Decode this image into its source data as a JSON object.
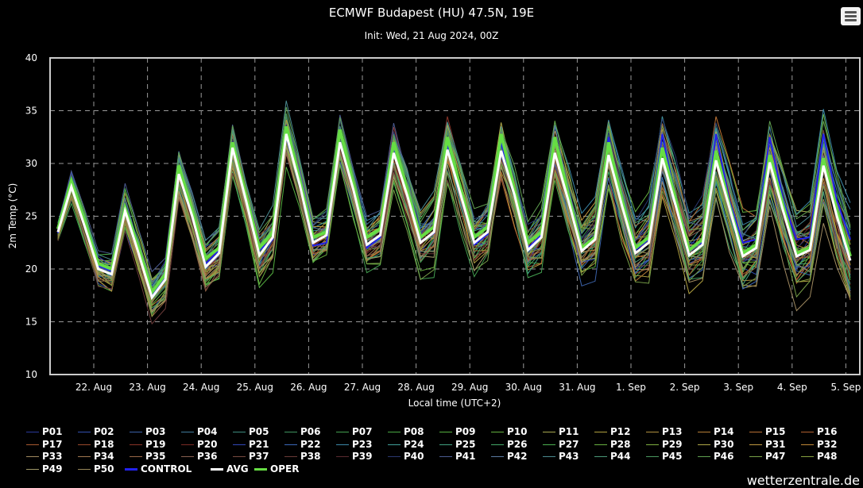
{
  "header": {
    "title": "ECMWF Budapest (HU) 47.5N, 19E",
    "subtitle": "Init: Wed, 21 Aug 2024, 00Z",
    "menu_icon": "hamburger-menu-icon"
  },
  "footer": {
    "brand": "wetterzentrale.de"
  },
  "chart_data": {
    "type": "line",
    "title": "ECMWF Budapest (HU) 47.5N, 19E",
    "subtitle": "Init: Wed, 21 Aug 2024, 00Z",
    "xlabel": "Local time (UTC+2)",
    "ylabel": "2m Temp (°C)",
    "ylim": [
      10,
      40
    ],
    "yticks": [
      "10",
      "15",
      "20",
      "25",
      "30",
      "35",
      "40"
    ],
    "xticks": [
      "22. Aug",
      "23. Aug",
      "24. Aug",
      "25. Aug",
      "26. Aug",
      "27. Aug",
      "28. Aug",
      "29. Aug",
      "30. Aug",
      "31. Aug",
      "1. Sep",
      "2. Sep",
      "3. Sep",
      "4. Sep",
      "5. Sep"
    ],
    "x_start": "21 Aug 08:00 local",
    "x_step_hours": 6,
    "grid": true,
    "legend_position": "bottom",
    "series_avg": {
      "name": "AVG",
      "color": "#ffffff",
      "values": [
        23.5,
        27.8,
        24,
        20,
        19.5,
        25.5,
        21.5,
        17.3,
        19,
        29,
        25,
        20.2,
        21.5,
        31.5,
        26.5,
        21.3,
        23,
        32.8,
        28,
        22.5,
        23.2,
        32,
        27.5,
        22.3,
        23.2,
        31,
        27,
        22.5,
        23.5,
        31.3,
        27,
        22.5,
        23.5,
        31.2,
        27,
        21.8,
        23,
        31,
        26.5,
        21.7,
        22.8,
        30.8,
        26,
        21.5,
        22.5,
        30.5,
        26,
        21.3,
        22.3,
        30.3,
        25.8,
        21.2,
        22,
        30.1,
        25.5,
        21.2,
        21.8,
        29.8,
        25,
        20.8
      ]
    },
    "series_oper": {
      "name": "OPER",
      "color": "#66dd44",
      "values": [
        23.8,
        28.3,
        24.5,
        20.5,
        20,
        25.8,
        22,
        17.8,
        19.5,
        29.8,
        25.5,
        21,
        22,
        32,
        27,
        22,
        23.5,
        33.5,
        28.5,
        23,
        23.5,
        33.2,
        28,
        23,
        23.8,
        32,
        27.5,
        23,
        24,
        32.5,
        27.5,
        23,
        24,
        32.8,
        27.5,
        22.5,
        23.5,
        32.5,
        27,
        22,
        23,
        32,
        26.5,
        22,
        23,
        31.5,
        26.5,
        21.8,
        22.8,
        31.2,
        26,
        21.5,
        22.3,
        30.8,
        26,
        21.5,
        22,
        30.5,
        25.5,
        21.2
      ]
    },
    "series_control": {
      "name": "CONTROL",
      "color": "#2222ee",
      "values": [
        23.4,
        28.5,
        24.3,
        20.3,
        19.8,
        26,
        21.8,
        17.5,
        19.2,
        29.5,
        25.2,
        20.5,
        21.8,
        31.8,
        26.8,
        21.8,
        22.8,
        33,
        28,
        22.2,
        22.5,
        32.8,
        27.8,
        22,
        23,
        31.5,
        27,
        22.5,
        23.4,
        31.8,
        27,
        22.3,
        23.3,
        32,
        27,
        22,
        23.2,
        32.3,
        26.8,
        22,
        23,
        32.5,
        26.5,
        21.8,
        22.8,
        32.8,
        26.5,
        22,
        22.5,
        32.8,
        26.5,
        22.5,
        22.8,
        32.5,
        26.5,
        22.8,
        23,
        32.8,
        26.5,
        22.8
      ]
    },
    "ensemble_spread": [
      0.8,
      1,
      1,
      1,
      1.1,
      1.1,
      1.2,
      1.2,
      1.3,
      1.3,
      1.3,
      1.3,
      1.4,
      1.3,
      1.3,
      1.4,
      1.4,
      1.2,
      1.4,
      1.4,
      1.5,
      1.4,
      1.6,
      1.6,
      1.7,
      1.6,
      1.8,
      1.8,
      1.9,
      1.7,
      1.9,
      1.9,
      2,
      1.7,
      1.9,
      1.8,
      2,
      1.7,
      1.9,
      1.9,
      2,
      1.8,
      2,
      2,
      2.1,
      1.9,
      2.1,
      2.1,
      2.2,
      2,
      2.2,
      2.2,
      2.3,
      2.1,
      2.4,
      2.4,
      2.5,
      2.4,
      2.7,
      3
    ],
    "members": [
      {
        "name": "P01",
        "color": "#2a3a9a"
      },
      {
        "name": "P02",
        "color": "#3350b0"
      },
      {
        "name": "P03",
        "color": "#3b62a8"
      },
      {
        "name": "P04",
        "color": "#3f7a9a"
      },
      {
        "name": "P05",
        "color": "#3e8c80"
      },
      {
        "name": "P06",
        "color": "#3f9460"
      },
      {
        "name": "P07",
        "color": "#43a050"
      },
      {
        "name": "P08",
        "color": "#4aa844"
      },
      {
        "name": "P09",
        "color": "#55b040"
      },
      {
        "name": "P10",
        "color": "#64b040"
      },
      {
        "name": "P11",
        "color": "#a8a850"
      },
      {
        "name": "P12",
        "color": "#b0a040"
      },
      {
        "name": "P13",
        "color": "#b09040"
      },
      {
        "name": "P14",
        "color": "#b88038"
      },
      {
        "name": "P15",
        "color": "#b87034"
      },
      {
        "name": "P16",
        "color": "#b06030"
      },
      {
        "name": "P17",
        "color": "#a85a30"
      },
      {
        "name": "P18",
        "color": "#9a4a2c"
      },
      {
        "name": "P19",
        "color": "#8a3428"
      },
      {
        "name": "P20",
        "color": "#7a2a24"
      },
      {
        "name": "P21",
        "color": "#3248b8"
      },
      {
        "name": "P22",
        "color": "#3a68b8"
      },
      {
        "name": "P23",
        "color": "#3c88a8"
      },
      {
        "name": "P24",
        "color": "#40a09a"
      },
      {
        "name": "P25",
        "color": "#40a080"
      },
      {
        "name": "P26",
        "color": "#44a868"
      },
      {
        "name": "P27",
        "color": "#4cb050"
      },
      {
        "name": "P28",
        "color": "#68b040"
      },
      {
        "name": "P29",
        "color": "#80b040"
      },
      {
        "name": "P30",
        "color": "#b0a848"
      },
      {
        "name": "P31",
        "color": "#c09840"
      },
      {
        "name": "P32",
        "color": "#c08838"
      },
      {
        "name": "P33",
        "color": "#a08a60"
      },
      {
        "name": "P34",
        "color": "#a07850"
      },
      {
        "name": "P35",
        "color": "#986848"
      },
      {
        "name": "P36",
        "color": "#886050"
      },
      {
        "name": "P37",
        "color": "#784a40"
      },
      {
        "name": "P38",
        "color": "#6a3a38"
      },
      {
        "name": "P39",
        "color": "#5a2a30"
      },
      {
        "name": "P40",
        "color": "#2a3870"
      },
      {
        "name": "P41",
        "color": "#4a5a90"
      },
      {
        "name": "P42",
        "color": "#5a7aa0"
      },
      {
        "name": "P43",
        "color": "#4a8a90"
      },
      {
        "name": "P44",
        "color": "#4a9878"
      },
      {
        "name": "P45",
        "color": "#4a9860"
      },
      {
        "name": "P46",
        "color": "#60a050"
      },
      {
        "name": "P47",
        "color": "#78a048"
      },
      {
        "name": "P48",
        "color": "#88a040"
      },
      {
        "name": "P49",
        "color": "#a09868"
      },
      {
        "name": "P50",
        "color": "#98885a"
      }
    ]
  }
}
